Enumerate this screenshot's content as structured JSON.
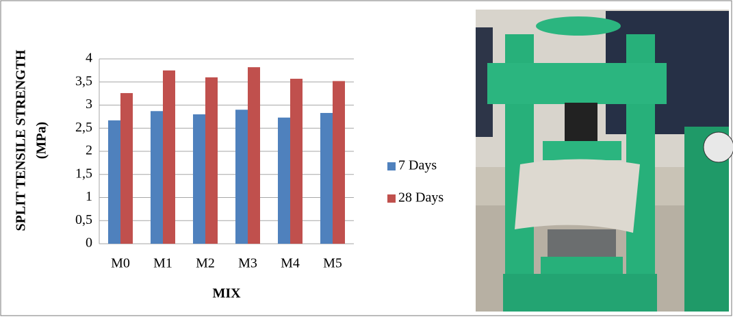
{
  "chart_data": {
    "type": "bar",
    "y_label": [
      "SPLIT TENSILE STRENGTH",
      "(MPa)"
    ],
    "x_label": "MIX",
    "categories": [
      "M0",
      "M1",
      "M2",
      "M3",
      "M4",
      "M5"
    ],
    "series": [
      {
        "name": "7 Days",
        "color": "#4f81bd",
        "values": [
          2.67,
          2.87,
          2.8,
          2.9,
          2.73,
          2.83
        ]
      },
      {
        "name": "28 Days",
        "color": "#c0504d",
        "values": [
          3.26,
          3.75,
          3.6,
          3.82,
          3.57,
          3.52
        ]
      }
    ],
    "ylim": [
      0,
      4
    ],
    "yticks": [
      0,
      {
        "value": 0.5,
        "label": "0,5"
      },
      1,
      {
        "value": 1.5,
        "label": "1,5"
      },
      2,
      {
        "value": 2.5,
        "label": "2,5"
      },
      3,
      {
        "value": 3.5,
        "label": "3,5"
      },
      4
    ],
    "grid": true,
    "legend": "right"
  }
}
